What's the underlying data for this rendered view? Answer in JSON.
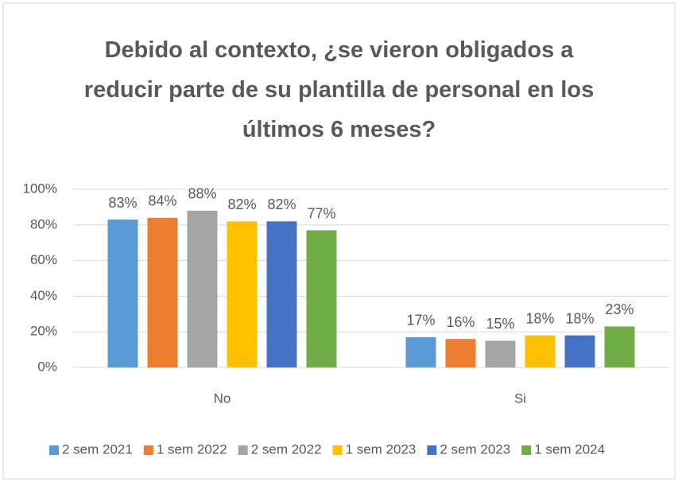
{
  "chart_data": {
    "type": "bar",
    "title": "Debido al contexto, ¿se vieron obligados a reducir parte de su plantilla de personal en los últimos 6 meses?",
    "categories": [
      "No",
      "Si"
    ],
    "series": [
      {
        "name": "2 sem 2021",
        "color": "#5b9bd5",
        "values": [
          83,
          17
        ],
        "value_labels": [
          "83%",
          "17%"
        ]
      },
      {
        "name": "1 sem 2022",
        "color": "#ed7d31",
        "values": [
          84,
          16
        ],
        "value_labels": [
          "84%",
          "16%"
        ]
      },
      {
        "name": "2 sem 2022",
        "color": "#a5a5a5",
        "values": [
          88,
          15
        ],
        "value_labels": [
          "88%",
          "15%"
        ]
      },
      {
        "name": "1 sem 2023",
        "color": "#ffc000",
        "values": [
          82,
          18
        ],
        "value_labels": [
          "82%",
          "18%"
        ]
      },
      {
        "name": "2 sem 2023",
        "color": "#4472c4",
        "values": [
          82,
          18
        ],
        "value_labels": [
          "82%",
          "18%"
        ]
      },
      {
        "name": "1 sem 2024",
        "color": "#70ad47",
        "values": [
          77,
          23
        ],
        "value_labels": [
          "77%",
          "23%"
        ]
      }
    ],
    "ylim": [
      0,
      100
    ],
    "yticks": [
      {
        "value": 0,
        "label": "0%"
      },
      {
        "value": 20,
        "label": "20%"
      },
      {
        "value": 40,
        "label": "40%"
      },
      {
        "value": 60,
        "label": "60%"
      },
      {
        "value": 80,
        "label": "80%"
      },
      {
        "value": 100,
        "label": "100%"
      }
    ],
    "grid": true,
    "legend": "bottom"
  }
}
